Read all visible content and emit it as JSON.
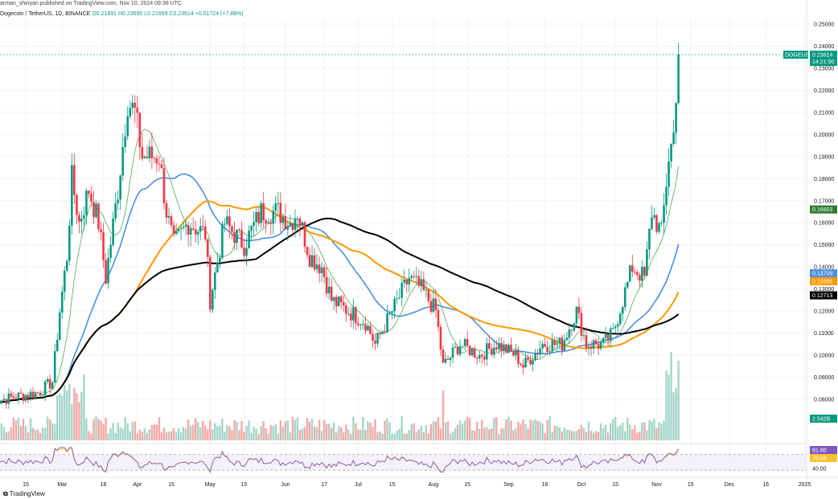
{
  "header": {
    "published": "arman_shiriyan published on TradingView.com, Nov 10, 2024 09:38 UTC",
    "instrument": "Dogecoin / TetherUS, 1D, BINANCE",
    "ohlc": "O0.21891 H0.23695 L0.21659 C0.23614 +0.01724 (+7.88%)"
  },
  "footer": {
    "brand": "TradingView"
  },
  "colors": {
    "up": "#089981",
    "down": "#f23645",
    "ma_fast": "#4caf50",
    "ma_blue": "#4a90e2",
    "ma_orange": "#ff9800",
    "ma_black": "#000000",
    "rsi": "#7e57c2"
  },
  "chart_data": {
    "type": "candlestick",
    "symbol": "DOGEUSDT",
    "ylim": [
      0.075,
      0.255
    ],
    "y_ticks": [
      "0.25000",
      "0.24000",
      "0.23000",
      "0.22000",
      "0.21000",
      "0.20000",
      "0.19000",
      "0.18000",
      "0.17000",
      "0.16000",
      "0.15000",
      "0.14000",
      "0.13000",
      "0.12000",
      "0.11000",
      "0.10000",
      "0.09000",
      "0.08000"
    ],
    "x_ticks": [
      "15",
      "Mar",
      "18",
      "Apr",
      "15",
      "May",
      "15",
      "Jun",
      "17",
      "Jul",
      "15",
      "Aug",
      "15",
      "Sep",
      "16",
      "Oct",
      "15",
      "Nov",
      "15",
      "Dec",
      "16",
      "2025"
    ],
    "x_tick_dates": [
      "2024-02-15",
      "2024-03-01",
      "2024-03-18",
      "2024-04-01",
      "2024-04-15",
      "2024-05-01",
      "2024-05-15",
      "2024-06-01",
      "2024-06-17",
      "2024-07-01",
      "2024-07-15",
      "2024-08-01",
      "2024-08-15",
      "2024-09-01",
      "2024-09-16",
      "2024-10-01",
      "2024-10-15",
      "2024-11-01",
      "2024-11-15",
      "2024-12-01",
      "2024-12-16",
      "2025-01-01"
    ],
    "price_anchors": [
      [
        "2024-02-01",
        0.079
      ],
      [
        "2024-02-10",
        0.081
      ],
      [
        "2024-02-20",
        0.083
      ],
      [
        "2024-02-26",
        0.088
      ],
      [
        "2024-02-29",
        0.12
      ],
      [
        "2024-03-03",
        0.145
      ],
      [
        "2024-03-05",
        0.18
      ],
      [
        "2024-03-08",
        0.16
      ],
      [
        "2024-03-12",
        0.175
      ],
      [
        "2024-03-16",
        0.16
      ],
      [
        "2024-03-19",
        0.135
      ],
      [
        "2024-03-24",
        0.175
      ],
      [
        "2024-03-28",
        0.215
      ],
      [
        "2024-03-31",
        0.21
      ],
      [
        "2024-04-03",
        0.19
      ],
      [
        "2024-04-07",
        0.19
      ],
      [
        "2024-04-10",
        0.19
      ],
      [
        "2024-04-13",
        0.165
      ],
      [
        "2024-04-16",
        0.15
      ],
      [
        "2024-04-22",
        0.16
      ],
      [
        "2024-04-29",
        0.155
      ],
      [
        "2024-05-01",
        0.125
      ],
      [
        "2024-05-07",
        0.16
      ],
      [
        "2024-05-15",
        0.15
      ],
      [
        "2024-05-22",
        0.165
      ],
      [
        "2024-05-29",
        0.165
      ],
      [
        "2024-06-03",
        0.16
      ],
      [
        "2024-06-06",
        0.165
      ],
      [
        "2024-06-11",
        0.145
      ],
      [
        "2024-06-16",
        0.14
      ],
      [
        "2024-06-20",
        0.125
      ],
      [
        "2024-06-27",
        0.12
      ],
      [
        "2024-07-04",
        0.115
      ],
      [
        "2024-07-08",
        0.105
      ],
      [
        "2024-07-15",
        0.12
      ],
      [
        "2024-07-22",
        0.135
      ],
      [
        "2024-07-27",
        0.13
      ],
      [
        "2024-08-02",
        0.12
      ],
      [
        "2024-08-05",
        0.095
      ],
      [
        "2024-08-12",
        0.105
      ],
      [
        "2024-08-20",
        0.1
      ],
      [
        "2024-08-27",
        0.105
      ],
      [
        "2024-09-04",
        0.1
      ],
      [
        "2024-09-07",
        0.095
      ],
      [
        "2024-09-15",
        0.105
      ],
      [
        "2024-09-23",
        0.105
      ],
      [
        "2024-09-29",
        0.12
      ],
      [
        "2024-10-03",
        0.105
      ],
      [
        "2024-10-10",
        0.105
      ],
      [
        "2024-10-14",
        0.11
      ],
      [
        "2024-10-18",
        0.125
      ],
      [
        "2024-10-22",
        0.14
      ],
      [
        "2024-10-27",
        0.135
      ],
      [
        "2024-10-30",
        0.165
      ],
      [
        "2024-11-03",
        0.155
      ],
      [
        "2024-11-06",
        0.19
      ],
      [
        "2024-11-08",
        0.2
      ],
      [
        "2024-11-09",
        0.22
      ],
      [
        "2024-11-10",
        0.23614
      ]
    ],
    "last_date": "2024-11-10",
    "price_labels": [
      {
        "name": "DOGEUSDT",
        "value": 0.23614,
        "text": "0.23614",
        "sub": "14:21:50",
        "color": "#089981"
      },
      {
        "name": "ma-fast",
        "value": 0.16603,
        "text": "0.16603",
        "color": "#2e7d32"
      },
      {
        "name": "ma-blue",
        "value": 0.13709,
        "text": "0.13709",
        "color": "#4a90e2"
      },
      {
        "name": "ma-orange",
        "value": 0.13355,
        "text": "0.13355",
        "color": "#ff9800"
      },
      {
        "name": "ma-black",
        "value": 0.12713,
        "text": "0.12713",
        "color": "#000000"
      },
      {
        "name": "volume",
        "value": null,
        "text": "2.542B",
        "color": "#089981"
      }
    ],
    "rsi": {
      "labels": [
        "81.80",
        "70.58",
        "40.00"
      ],
      "ylim": [
        20,
        90
      ]
    },
    "grid": true,
    "legend": "none"
  }
}
